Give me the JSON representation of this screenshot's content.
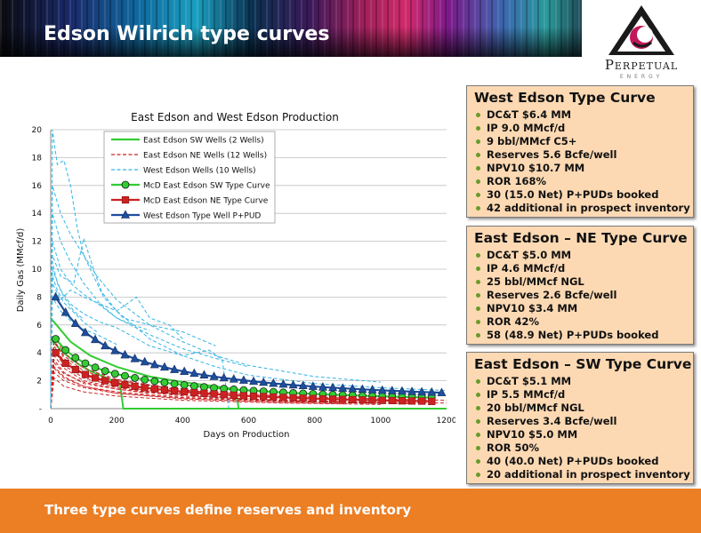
{
  "slide": {
    "title": "Edson Wilrich type curves",
    "footer": "Three type curves define reserves and inventory"
  },
  "logo": {
    "name": "Perpetual",
    "sub": "ENERGY"
  },
  "boxes": [
    {
      "title": "West Edson Type Curve",
      "items": [
        "DC&T $6.4 MM",
        "IP 9.0 MMcf/d",
        "9 bbl/MMcf C5+",
        "Reserves 5.6 Bcfe/well",
        "NPV10 $10.7 MM",
        "ROR 168%",
        "30 (15.0 Net) P+PUDs booked",
        "42 additional in prospect inventory"
      ]
    },
    {
      "title": "East Edson – NE Type Curve",
      "items": [
        "DC&T $5.0 MM",
        "IP 4.6 MMcf/d",
        "25 bbl/MMcf NGL",
        "Reserves 2.6 Bcfe/well",
        "NPV10 $3.4 MM",
        "ROR 42%",
        "58 (48.9 Net) P+PUDs booked"
      ]
    },
    {
      "title": "East Edson – SW Type Curve",
      "items": [
        "DC&T $5.1 MM",
        "IP 5.5 MMcf/d",
        "20 bbl/MMcf NGL",
        "Reserves 3.4 Bcfe/well",
        "NPV10 $5.0 MM",
        "ROR 50%",
        "40 (40.0 Net) P+PUDs booked",
        "20 additional in prospect inventory"
      ]
    }
  ],
  "colors": {
    "footer": "#ec7e24",
    "box_fill": "#fcd9b3",
    "green": "#33cc33",
    "red": "#cc2222",
    "blue": "#1f4e9c",
    "cyan": "#33b5e5"
  },
  "chart_data": {
    "type": "line",
    "title": "East Edson and West Edson Production",
    "xlabel": "Days on Production",
    "ylabel": "Daily Gas (MMcf/d)",
    "xlim": [
      0,
      1200
    ],
    "ylim": [
      0,
      20
    ],
    "xticks": [
      0,
      200,
      400,
      600,
      800,
      1000,
      1200
    ],
    "yticks": [
      0,
      2,
      4,
      6,
      8,
      10,
      12,
      14,
      16,
      18,
      20
    ],
    "ytick_labels": [
      "-",
      "2",
      "4",
      "6",
      "8",
      "10",
      "12",
      "14",
      "16",
      "18",
      "20"
    ],
    "grid": true,
    "legend_position": "top-center",
    "series": [
      {
        "name": "East Edson SW Wells (2 Wells)",
        "style": "solid",
        "color": "#33cc33",
        "lines": [
          {
            "x": [
              0,
              30,
              60,
              90,
              120,
              150,
              180,
              210,
              220,
              600,
              1200
            ],
            "y": [
              5,
              4.2,
              3.6,
              3.1,
              2.7,
              2.4,
              2.1,
              1.8,
              0,
              0,
              0
            ]
          },
          {
            "x": [
              0,
              60,
              120,
              200,
              300,
              400,
              500,
              560,
              570,
              1200
            ],
            "y": [
              6.5,
              4.8,
              3.8,
              3.0,
              2.3,
              1.9,
              1.6,
              1.4,
              0,
              0
            ]
          }
        ]
      },
      {
        "name": "East Edson NE Wells (12 Wells)",
        "style": "dashed",
        "color": "#cc2222",
        "lines": [
          {
            "x": [
              0,
              10,
              40,
              100,
              200,
              400,
              700,
              1000,
              1200
            ],
            "y": [
              0,
              3.5,
              2.6,
              1.8,
              1.4,
              0.9,
              0.6,
              0.45,
              0.4
            ]
          },
          {
            "x": [
              0,
              10,
              40,
              100,
              200,
              400,
              700,
              1000,
              1200
            ],
            "y": [
              0,
              4.8,
              3.8,
              2.7,
              2.0,
              1.3,
              0.9,
              0.7,
              0.6
            ]
          },
          {
            "x": [
              0,
              10,
              40,
              100,
              200,
              400,
              700,
              900
            ],
            "y": [
              0,
              3.0,
              2.3,
              1.6,
              1.1,
              0.7,
              0.45,
              0.35
            ]
          },
          {
            "x": [
              0,
              10,
              40,
              100,
              200,
              400,
              600
            ],
            "y": [
              0,
              4.2,
              3.1,
              2.2,
              1.6,
              1.0,
              0.7
            ]
          },
          {
            "x": [
              0,
              10,
              40,
              100,
              200,
              400,
              700,
              1100
            ],
            "y": [
              0,
              2.6,
              2.0,
              1.5,
              1.1,
              0.75,
              0.5,
              0.35
            ]
          },
          {
            "x": [
              0,
              10,
              40,
              100,
              200,
              350,
              500
            ],
            "y": [
              0,
              5.3,
              4.0,
              2.9,
              2.1,
              1.5,
              1.1
            ]
          },
          {
            "x": [
              0,
              10,
              40,
              100,
              200,
              300,
              400
            ],
            "y": [
              0,
              3.8,
              2.9,
              2.0,
              1.5,
              1.2,
              1.0
            ]
          },
          {
            "x": [
              0,
              10,
              40,
              100,
              200,
              400,
              700,
              1000
            ],
            "y": [
              0,
              2.2,
              1.6,
              1.2,
              0.9,
              0.6,
              0.4,
              0.3
            ]
          },
          {
            "x": [
              0,
              10,
              40,
              100,
              200,
              400,
              800
            ],
            "y": [
              0,
              4.5,
              3.4,
              2.4,
              1.7,
              1.1,
              0.7
            ]
          },
          {
            "x": [
              0,
              10,
              40,
              100,
              200,
              300
            ],
            "y": [
              0,
              3.3,
              2.5,
              1.9,
              1.4,
              1.1
            ]
          },
          {
            "x": [
              0,
              10,
              40,
              100,
              200,
              400,
              700,
              1050
            ],
            "y": [
              0,
              2.9,
              2.2,
              1.6,
              1.2,
              0.8,
              0.55,
              0.4
            ]
          },
          {
            "x": [
              0,
              10,
              40,
              100,
              200
            ],
            "y": [
              0,
              5.0,
              3.6,
              2.5,
              1.8
            ]
          }
        ]
      },
      {
        "name": "West Edson Wells (10 Wells)",
        "style": "dashed",
        "color": "#33b5e5",
        "lines": [
          {
            "x": [
              0,
              5,
              20,
              40,
              60,
              80,
              100,
              150,
              200,
              300,
              400,
              500,
              600,
              800,
              1000,
              1200
            ],
            "y": [
              0,
              20,
              17.5,
              17.8,
              16,
              13,
              11,
              8.5,
              7,
              5,
              3.8,
              3,
              2.4,
              1.8,
              1.5,
              1.3
            ]
          },
          {
            "x": [
              0,
              5,
              30,
              60,
              100,
              140,
              200,
              300,
              400,
              500,
              600,
              800,
              1000
            ],
            "y": [
              0,
              16,
              14,
              12.5,
              11,
              9.5,
              7.8,
              6,
              4.8,
              3.8,
              3.1,
              2.3,
              1.9
            ]
          },
          {
            "x": [
              0,
              5,
              30,
              60,
              100,
              150,
              200,
              300,
              400,
              500,
              600
            ],
            "y": [
              0,
              14,
              12,
              10.5,
              9,
              7.5,
              6.5,
              5.3,
              4.3,
              3.6,
              3.0
            ]
          },
          {
            "x": [
              0,
              5,
              30,
              70,
              100,
              130,
              160,
              220,
              300,
              400,
              500
            ],
            "y": [
              0,
              11,
              9.5,
              9,
              12.2,
              10,
              8,
              6.5,
              6,
              5.5,
              4.5
            ]
          },
          {
            "x": [
              0,
              5,
              30,
              60,
              100,
              150,
              200,
              300,
              400,
              480,
              520,
              540
            ],
            "y": [
              0,
              10,
              8.5,
              7.5,
              6.8,
              6.2,
              5.8,
              4.5,
              3.8,
              4.2,
              3.5,
              0
            ]
          },
          {
            "x": [
              0,
              5,
              30,
              60,
              100,
              150,
              200,
              260,
              300,
              360,
              400
            ],
            "y": [
              0,
              9,
              7.8,
              8.5,
              8.0,
              7.5,
              7.0,
              8.0,
              6.5,
              6.0,
              5.0
            ]
          },
          {
            "x": [
              0,
              5,
              30,
              60,
              100,
              150,
              200,
              250,
              300
            ],
            "y": [
              0,
              12,
              10,
              9,
              8.2,
              7.4,
              6.5,
              6.0,
              5.6
            ]
          },
          {
            "x": [
              0,
              5,
              30,
              60,
              100,
              150,
              200
            ],
            "y": [
              0,
              8,
              7,
              6.3,
              5.7,
              5.2,
              4.6
            ]
          },
          {
            "x": [
              0,
              5,
              20,
              40,
              70,
              100,
              140
            ],
            "y": [
              0,
              9.5,
              8.5,
              7.6,
              6.9,
              6.2,
              5.5
            ]
          },
          {
            "x": [
              0,
              5,
              20,
              40,
              70,
              100
            ],
            "y": [
              0,
              10.5,
              9.0,
              8.0,
              7.0,
              6.4
            ]
          }
        ]
      },
      {
        "name": "McD East Edson SW Type Curve",
        "style": "solid-marker",
        "marker": "circle",
        "color": "#33cc33",
        "x": [
          15,
          45,
          75,
          105,
          135,
          165,
          195,
          225,
          255,
          285,
          315,
          345,
          375,
          405,
          435,
          465,
          495,
          525,
          555,
          585,
          615,
          645,
          675,
          705,
          735,
          765,
          795,
          825,
          855,
          885,
          915,
          945,
          975,
          1005,
          1035,
          1065,
          1095,
          1125,
          1155
        ],
        "y": [
          5.0,
          4.2,
          3.65,
          3.25,
          2.95,
          2.7,
          2.5,
          2.35,
          2.2,
          2.08,
          1.97,
          1.87,
          1.78,
          1.7,
          1.62,
          1.55,
          1.49,
          1.43,
          1.38,
          1.33,
          1.28,
          1.24,
          1.2,
          1.16,
          1.12,
          1.09,
          1.06,
          1.03,
          1.0,
          0.97,
          0.95,
          0.92,
          0.9,
          0.88,
          0.86,
          0.84,
          0.82,
          0.8,
          0.78
        ]
      },
      {
        "name": "McD East Edson NE Type Curve",
        "style": "solid-marker",
        "marker": "square",
        "color": "#cc2222",
        "x": [
          15,
          45,
          75,
          105,
          135,
          165,
          195,
          225,
          255,
          285,
          315,
          345,
          375,
          405,
          435,
          465,
          495,
          525,
          555,
          585,
          615,
          645,
          675,
          705,
          735,
          765,
          795,
          825,
          855,
          885,
          915,
          945,
          975,
          1005,
          1035,
          1065,
          1095,
          1125,
          1155
        ],
        "y": [
          4.0,
          3.25,
          2.8,
          2.45,
          2.2,
          2.0,
          1.85,
          1.72,
          1.6,
          1.5,
          1.42,
          1.34,
          1.27,
          1.21,
          1.15,
          1.1,
          1.05,
          1.0,
          0.96,
          0.92,
          0.89,
          0.86,
          0.83,
          0.8,
          0.77,
          0.75,
          0.72,
          0.7,
          0.68,
          0.66,
          0.64,
          0.62,
          0.61,
          0.59,
          0.58,
          0.56,
          0.55,
          0.54,
          0.52
        ]
      },
      {
        "name": "West Edson Type Well P+PUD",
        "style": "solid-marker",
        "marker": "triangle",
        "color": "#1f4e9c",
        "x": [
          15,
          45,
          75,
          105,
          135,
          165,
          195,
          225,
          255,
          285,
          315,
          345,
          375,
          405,
          435,
          465,
          495,
          525,
          555,
          585,
          615,
          645,
          675,
          705,
          735,
          765,
          795,
          825,
          855,
          885,
          915,
          945,
          975,
          1005,
          1035,
          1065,
          1095,
          1125,
          1155,
          1185
        ],
        "y": [
          8.0,
          6.9,
          6.1,
          5.45,
          4.95,
          4.5,
          4.15,
          3.85,
          3.58,
          3.35,
          3.15,
          2.97,
          2.8,
          2.66,
          2.53,
          2.41,
          2.3,
          2.2,
          2.11,
          2.03,
          1.95,
          1.88,
          1.81,
          1.75,
          1.69,
          1.64,
          1.59,
          1.54,
          1.5,
          1.46,
          1.42,
          1.38,
          1.35,
          1.31,
          1.28,
          1.25,
          1.22,
          1.19,
          1.17,
          1.14
        ]
      }
    ]
  }
}
